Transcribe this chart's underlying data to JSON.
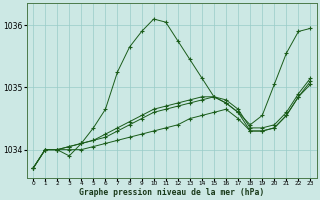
{
  "xlabel": "Graphe pression niveau de la mer (hPa)",
  "x_labels": [
    "0",
    "1",
    "2",
    "3",
    "4",
    "5",
    "6",
    "7",
    "8",
    "9",
    "10",
    "11",
    "12",
    "13",
    "14",
    "15",
    "16",
    "17",
    "18",
    "19",
    "20",
    "21",
    "22",
    "23"
  ],
  "ylim": [
    1033.55,
    1036.35
  ],
  "yticks": [
    1034,
    1035,
    1036
  ],
  "bg_color": "#cce8e4",
  "grid_color": "#99ccc8",
  "line_color": "#1a5c1a",
  "series": [
    [
      1033.7,
      1034.0,
      1034.0,
      1033.9,
      1034.1,
      1034.35,
      1034.65,
      1035.25,
      1035.65,
      1035.9,
      1036.1,
      1036.05,
      1035.75,
      1035.45,
      1035.15,
      1034.85,
      1034.75,
      1034.6,
      1034.4,
      1034.55,
      1035.05,
      1035.55,
      1035.9,
      1035.95
    ],
    [
      1033.7,
      1034.0,
      1034.0,
      1034.0,
      1034.0,
      1034.05,
      1034.1,
      1034.15,
      1034.2,
      1034.25,
      1034.3,
      1034.35,
      1034.4,
      1034.5,
      1034.55,
      1034.6,
      1034.65,
      1034.5,
      1034.3,
      1034.3,
      1034.35,
      1034.55,
      1034.85,
      1035.05
    ],
    [
      1033.7,
      1034.0,
      1034.0,
      1034.05,
      1034.1,
      1034.15,
      1034.2,
      1034.3,
      1034.4,
      1034.5,
      1034.6,
      1034.65,
      1034.7,
      1034.75,
      1034.8,
      1034.85,
      1034.75,
      1034.6,
      1034.3,
      1034.3,
      1034.35,
      1034.55,
      1034.85,
      1035.1
    ],
    [
      1033.7,
      1034.0,
      1034.0,
      1034.05,
      1034.1,
      1034.15,
      1034.25,
      1034.35,
      1034.45,
      1034.55,
      1034.65,
      1034.7,
      1034.75,
      1034.8,
      1034.85,
      1034.85,
      1034.8,
      1034.65,
      1034.35,
      1034.35,
      1034.4,
      1034.6,
      1034.9,
      1035.15
    ]
  ]
}
